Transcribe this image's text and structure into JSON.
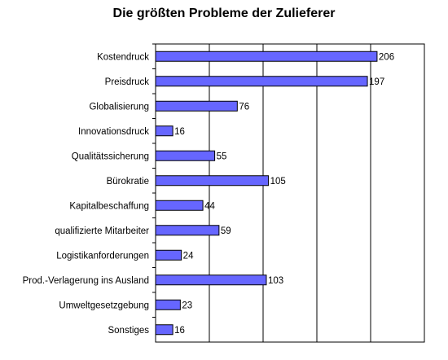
{
  "chart_data": {
    "type": "bar",
    "orientation": "horizontal",
    "title": "Die größten Probleme der Zulieferer",
    "categories": [
      "Kostendruck",
      "Preisdruck",
      "Globalisierung",
      "Innovationsdruck",
      "Qualitätssicherung",
      "Bürokratie",
      "Kapitalbeschaffung",
      "qualifizierte Mitarbeiter",
      "Logistikanforderungen",
      "Prod.-Verlagerung ins Ausland",
      "Umweltgesetzgebung",
      "Sonstiges"
    ],
    "values": [
      206,
      197,
      76,
      16,
      55,
      105,
      44,
      59,
      24,
      103,
      23,
      16
    ],
    "value_labels": [
      "206",
      "197",
      "76",
      "16",
      "55",
      "105",
      "44",
      "59",
      "24",
      "103",
      "23",
      "16"
    ],
    "xlim": [
      0,
      250
    ],
    "grid": true,
    "bar_color": "#6666ff",
    "bar_border_color": "#000000"
  }
}
